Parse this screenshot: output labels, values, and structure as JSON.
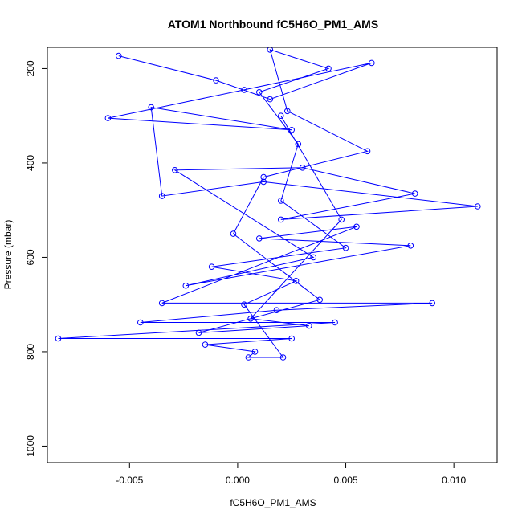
{
  "chart_data": {
    "type": "line",
    "title": "ATOM1 Northbound fC5H6O_PM1_AMS",
    "xlabel": "fC5H6O_PM1_AMS",
    "ylabel": "Pressure (mbar)",
    "xlim": [
      -0.0088,
      0.012
    ],
    "ylim": [
      1035,
      155
    ],
    "y_reversed": true,
    "x_ticks": [
      -0.005,
      0.0,
      0.005,
      0.01
    ],
    "x_tick_labels": [
      "-0.005",
      "0.000",
      "0.005",
      "0.010"
    ],
    "y_ticks": [
      200,
      400,
      600,
      800,
      1000
    ],
    "y_tick_labels": [
      "200",
      "400",
      "600",
      "800",
      "1000"
    ],
    "grid": false,
    "marker": "open-circle",
    "series": [
      {
        "color": "#0000ff",
        "points": [
          [
            -0.0055,
            173
          ],
          [
            -0.001,
            225
          ],
          [
            0.0015,
            265
          ],
          [
            0.0062,
            188
          ],
          [
            0.0003,
            245
          ],
          [
            -0.006,
            305
          ],
          [
            0.0025,
            330
          ],
          [
            -0.004,
            282
          ],
          [
            -0.0035,
            470
          ],
          [
            0.0012,
            440
          ],
          [
            0.0111,
            492
          ],
          [
            0.002,
            520
          ],
          [
            0.0082,
            465
          ],
          [
            0.003,
            410
          ],
          [
            -0.0029,
            415
          ],
          [
            0.0035,
            600
          ],
          [
            -0.0024,
            660
          ],
          [
            0.008,
            575
          ],
          [
            0.001,
            560
          ],
          [
            0.0055,
            535
          ],
          [
            -0.0035,
            697
          ],
          [
            0.009,
            697
          ],
          [
            0.0018,
            712
          ],
          [
            -0.0045,
            738
          ],
          [
            0.0045,
            738
          ],
          [
            -0.0083,
            772
          ],
          [
            0.0025,
            772
          ],
          [
            -0.0015,
            785
          ],
          [
            0.0008,
            800
          ],
          [
            0.0005,
            812
          ],
          [
            0.0021,
            812
          ],
          [
            0.0003,
            700
          ],
          [
            0.0027,
            650
          ],
          [
            -0.0012,
            620
          ],
          [
            0.005,
            580
          ],
          [
            0.002,
            480
          ],
          [
            0.0028,
            360
          ],
          [
            0.001,
            250
          ],
          [
            0.0042,
            200
          ],
          [
            0.0015,
            160
          ],
          [
            0.0023,
            290
          ],
          [
            0.006,
            375
          ],
          [
            0.0012,
            430
          ],
          [
            -0.0002,
            550
          ],
          [
            0.0038,
            690
          ],
          [
            -0.0018,
            760
          ],
          [
            0.0033,
            745
          ],
          [
            0.0006,
            730
          ],
          [
            0.0048,
            520
          ],
          [
            0.002,
            300
          ]
        ]
      }
    ]
  }
}
